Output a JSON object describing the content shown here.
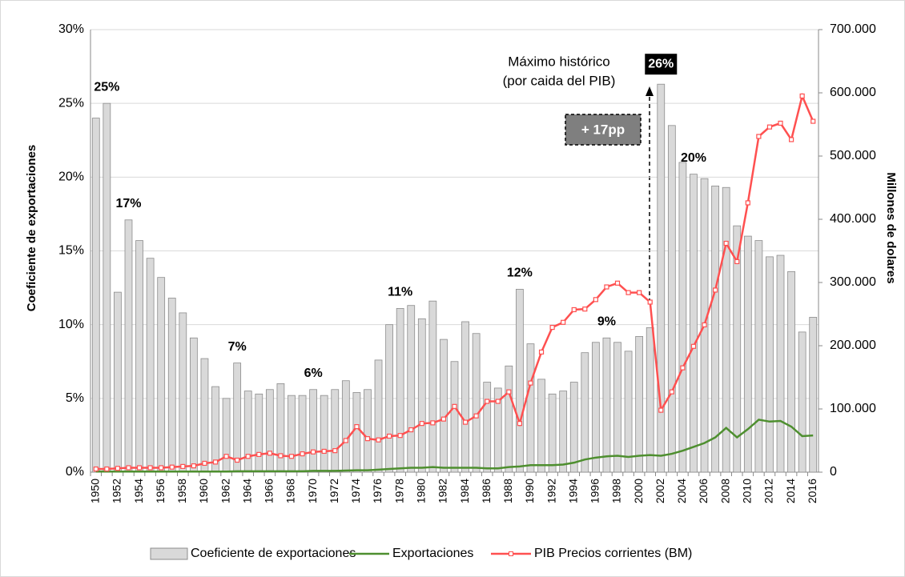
{
  "chart_data": {
    "type": "bar-line",
    "y_label": "Coeficiente de exportaciones",
    "y2_label": "Millones de dolares",
    "categories": [
      "1950",
      null,
      "1952",
      null,
      "1954",
      null,
      "1956",
      null,
      "1958",
      null,
      "1960",
      null,
      "1962",
      null,
      "1964",
      null,
      "1966",
      null,
      "1968",
      null,
      "1970",
      null,
      "1972",
      null,
      "1974",
      null,
      "1976",
      null,
      "1978",
      null,
      "1980",
      null,
      "1982",
      null,
      "1984",
      null,
      "1986",
      null,
      "1988",
      null,
      "1990",
      null,
      "1992",
      null,
      "1994",
      null,
      "1996",
      null,
      "1998",
      null,
      "2000",
      null,
      "2002",
      null,
      "2004",
      null,
      "2006",
      null,
      "2008",
      null,
      "2010",
      null,
      "2012",
      null,
      "2014",
      null,
      "2016"
    ],
    "series": [
      {
        "name": "Coeficiente de exportaciones",
        "kind": "bar",
        "axis": "y",
        "color": "#d9d9d9",
        "values": [
          24.0,
          25.0,
          12.2,
          17.1,
          15.7,
          14.5,
          13.2,
          11.8,
          10.8,
          9.1,
          7.7,
          5.8,
          5.0,
          7.4,
          5.5,
          5.3,
          5.6,
          6.0,
          5.2,
          5.2,
          5.6,
          5.2,
          5.6,
          6.2,
          5.4,
          5.6,
          7.6,
          10.0,
          11.1,
          11.3,
          10.4,
          11.6,
          9.0,
          7.5,
          10.2,
          9.4,
          6.1,
          5.7,
          7.2,
          12.4,
          8.7,
          6.3,
          5.3,
          5.5,
          6.1,
          8.1,
          8.8,
          9.1,
          8.8,
          8.2,
          9.2,
          9.8,
          26.3,
          23.5,
          21.0,
          20.2,
          19.9,
          19.4,
          19.3,
          16.7,
          16.0,
          15.7,
          14.6,
          14.7,
          13.6,
          9.5,
          10.5
        ],
        "value_labels": [
          null,
          "25%",
          null,
          "17%",
          null,
          null,
          null,
          null,
          null,
          null,
          null,
          null,
          null,
          "7%",
          null,
          null,
          null,
          null,
          null,
          null,
          "6%",
          null,
          null,
          null,
          null,
          null,
          null,
          null,
          "11%",
          null,
          null,
          null,
          null,
          null,
          null,
          null,
          null,
          null,
          null,
          "12%",
          null,
          null,
          null,
          null,
          null,
          null,
          null,
          "9%",
          null,
          null,
          null,
          null,
          "26%",
          null,
          null,
          "20%",
          null,
          null,
          null,
          null,
          null,
          null,
          null,
          null,
          null,
          null,
          null
        ]
      },
      {
        "name": "Exportaciones",
        "kind": "line",
        "axis": "y2",
        "color": "#4e8f2f",
        "values": [
          1000,
          1000,
          1000,
          1000,
          1000,
          1000,
          1000,
          1000,
          1000,
          1000,
          1000,
          1000,
          1000,
          1500,
          1500,
          1500,
          1500,
          1500,
          1500,
          1500,
          2000,
          2000,
          2000,
          2500,
          3000,
          3000,
          4000,
          5000,
          6000,
          7000,
          7000,
          8000,
          7000,
          7000,
          7000,
          7000,
          6000,
          6000,
          8000,
          9000,
          11000,
          11000,
          11000,
          12000,
          15000,
          20000,
          23000,
          25000,
          26000,
          24000,
          26000,
          27000,
          26000,
          29000,
          34000,
          40000,
          46000,
          55000,
          70000,
          55000,
          68000,
          83000,
          80000,
          81000,
          72000,
          57000,
          58000
        ]
      },
      {
        "name": "PIB Precios corrientes (BM)",
        "kind": "line",
        "markers": true,
        "axis": "y2",
        "color": "#ff5050",
        "values": [
          5000,
          5000,
          6000,
          7000,
          7000,
          7000,
          7000,
          8000,
          9000,
          10000,
          14000,
          16000,
          25000,
          19000,
          25000,
          28000,
          30000,
          26000,
          25000,
          29000,
          32000,
          33000,
          34000,
          50000,
          72000,
          53000,
          51000,
          57000,
          58000,
          67000,
          77000,
          78000,
          84000,
          104000,
          79000,
          89000,
          112000,
          112000,
          127000,
          77000,
          141000,
          190000,
          229000,
          237000,
          257000,
          258000,
          273000,
          293000,
          299000,
          284000,
          284000,
          269000,
          98000,
          127000,
          165000,
          199000,
          233000,
          288000,
          362000,
          333000,
          426000,
          531000,
          546000,
          552000,
          526000,
          595000,
          555000
        ]
      }
    ],
    "ylim": [
      0,
      30
    ],
    "yticks": [
      {
        "value": 0,
        "label": "0%"
      },
      {
        "value": 5,
        "label": "5%"
      },
      {
        "value": 10,
        "label": "10%"
      },
      {
        "value": 15,
        "label": "15%"
      },
      {
        "value": 20,
        "label": "20%"
      },
      {
        "value": 25,
        "label": "25%"
      },
      {
        "value": 30,
        "label": "30%"
      }
    ],
    "y2lim": [
      0,
      700000
    ],
    "y2ticks": [
      0,
      {
        "value": 100000,
        "label": "100.000"
      },
      {
        "value": 200000,
        "label": "200.000"
      },
      {
        "value": 300000,
        "label": "300.000"
      },
      {
        "value": 400000,
        "label": "400.000"
      },
      {
        "value": 500000,
        "label": "500.000"
      },
      {
        "value": 600000,
        "label": "600.000"
      },
      {
        "value": 700000,
        "label": "700.000"
      }
    ],
    "grid": true,
    "legend": "bottom",
    "annotations": [
      "Máximo histórico",
      "(por caida del PIB)",
      "+ 17pp"
    ]
  }
}
